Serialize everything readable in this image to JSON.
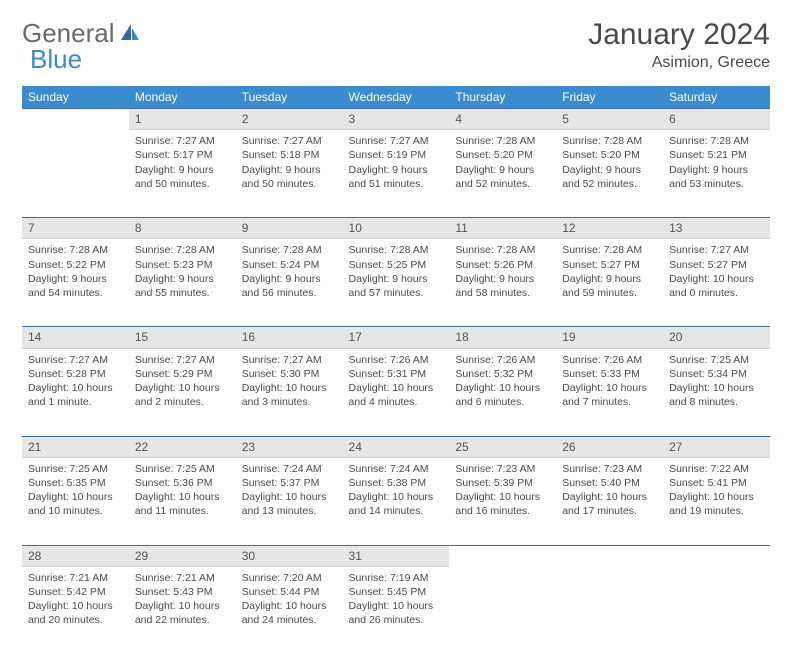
{
  "brand": {
    "part1": "General",
    "part2": "Blue"
  },
  "title": "January 2024",
  "location": "Asimion, Greece",
  "colors": {
    "header_bg": "#3b8bd0",
    "header_text": "#ffffff",
    "daynum_bg": "#e6e6e6",
    "row_border": "#3b6fa0",
    "body_text": "#4a4a4a",
    "page_bg": "#ffffff"
  },
  "weekdays": [
    "Sunday",
    "Monday",
    "Tuesday",
    "Wednesday",
    "Thursday",
    "Friday",
    "Saturday"
  ],
  "weeks": [
    {
      "nums": [
        "",
        "1",
        "2",
        "3",
        "4",
        "5",
        "6"
      ],
      "cells": [
        null,
        {
          "sunrise": "Sunrise: 7:27 AM",
          "sunset": "Sunset: 5:17 PM",
          "day1": "Daylight: 9 hours",
          "day2": "and 50 minutes."
        },
        {
          "sunrise": "Sunrise: 7:27 AM",
          "sunset": "Sunset: 5:18 PM",
          "day1": "Daylight: 9 hours",
          "day2": "and 50 minutes."
        },
        {
          "sunrise": "Sunrise: 7:27 AM",
          "sunset": "Sunset: 5:19 PM",
          "day1": "Daylight: 9 hours",
          "day2": "and 51 minutes."
        },
        {
          "sunrise": "Sunrise: 7:28 AM",
          "sunset": "Sunset: 5:20 PM",
          "day1": "Daylight: 9 hours",
          "day2": "and 52 minutes."
        },
        {
          "sunrise": "Sunrise: 7:28 AM",
          "sunset": "Sunset: 5:20 PM",
          "day1": "Daylight: 9 hours",
          "day2": "and 52 minutes."
        },
        {
          "sunrise": "Sunrise: 7:28 AM",
          "sunset": "Sunset: 5:21 PM",
          "day1": "Daylight: 9 hours",
          "day2": "and 53 minutes."
        }
      ]
    },
    {
      "nums": [
        "7",
        "8",
        "9",
        "10",
        "11",
        "12",
        "13"
      ],
      "cells": [
        {
          "sunrise": "Sunrise: 7:28 AM",
          "sunset": "Sunset: 5:22 PM",
          "day1": "Daylight: 9 hours",
          "day2": "and 54 minutes."
        },
        {
          "sunrise": "Sunrise: 7:28 AM",
          "sunset": "Sunset: 5:23 PM",
          "day1": "Daylight: 9 hours",
          "day2": "and 55 minutes."
        },
        {
          "sunrise": "Sunrise: 7:28 AM",
          "sunset": "Sunset: 5:24 PM",
          "day1": "Daylight: 9 hours",
          "day2": "and 56 minutes."
        },
        {
          "sunrise": "Sunrise: 7:28 AM",
          "sunset": "Sunset: 5:25 PM",
          "day1": "Daylight: 9 hours",
          "day2": "and 57 minutes."
        },
        {
          "sunrise": "Sunrise: 7:28 AM",
          "sunset": "Sunset: 5:26 PM",
          "day1": "Daylight: 9 hours",
          "day2": "and 58 minutes."
        },
        {
          "sunrise": "Sunrise: 7:28 AM",
          "sunset": "Sunset: 5:27 PM",
          "day1": "Daylight: 9 hours",
          "day2": "and 59 minutes."
        },
        {
          "sunrise": "Sunrise: 7:27 AM",
          "sunset": "Sunset: 5:27 PM",
          "day1": "Daylight: 10 hours",
          "day2": "and 0 minutes."
        }
      ]
    },
    {
      "nums": [
        "14",
        "15",
        "16",
        "17",
        "18",
        "19",
        "20"
      ],
      "cells": [
        {
          "sunrise": "Sunrise: 7:27 AM",
          "sunset": "Sunset: 5:28 PM",
          "day1": "Daylight: 10 hours",
          "day2": "and 1 minute."
        },
        {
          "sunrise": "Sunrise: 7:27 AM",
          "sunset": "Sunset: 5:29 PM",
          "day1": "Daylight: 10 hours",
          "day2": "and 2 minutes."
        },
        {
          "sunrise": "Sunrise: 7:27 AM",
          "sunset": "Sunset: 5:30 PM",
          "day1": "Daylight: 10 hours",
          "day2": "and 3 minutes."
        },
        {
          "sunrise": "Sunrise: 7:26 AM",
          "sunset": "Sunset: 5:31 PM",
          "day1": "Daylight: 10 hours",
          "day2": "and 4 minutes."
        },
        {
          "sunrise": "Sunrise: 7:26 AM",
          "sunset": "Sunset: 5:32 PM",
          "day1": "Daylight: 10 hours",
          "day2": "and 6 minutes."
        },
        {
          "sunrise": "Sunrise: 7:26 AM",
          "sunset": "Sunset: 5:33 PM",
          "day1": "Daylight: 10 hours",
          "day2": "and 7 minutes."
        },
        {
          "sunrise": "Sunrise: 7:25 AM",
          "sunset": "Sunset: 5:34 PM",
          "day1": "Daylight: 10 hours",
          "day2": "and 8 minutes."
        }
      ]
    },
    {
      "nums": [
        "21",
        "22",
        "23",
        "24",
        "25",
        "26",
        "27"
      ],
      "cells": [
        {
          "sunrise": "Sunrise: 7:25 AM",
          "sunset": "Sunset: 5:35 PM",
          "day1": "Daylight: 10 hours",
          "day2": "and 10 minutes."
        },
        {
          "sunrise": "Sunrise: 7:25 AM",
          "sunset": "Sunset: 5:36 PM",
          "day1": "Daylight: 10 hours",
          "day2": "and 11 minutes."
        },
        {
          "sunrise": "Sunrise: 7:24 AM",
          "sunset": "Sunset: 5:37 PM",
          "day1": "Daylight: 10 hours",
          "day2": "and 13 minutes."
        },
        {
          "sunrise": "Sunrise: 7:24 AM",
          "sunset": "Sunset: 5:38 PM",
          "day1": "Daylight: 10 hours",
          "day2": "and 14 minutes."
        },
        {
          "sunrise": "Sunrise: 7:23 AM",
          "sunset": "Sunset: 5:39 PM",
          "day1": "Daylight: 10 hours",
          "day2": "and 16 minutes."
        },
        {
          "sunrise": "Sunrise: 7:23 AM",
          "sunset": "Sunset: 5:40 PM",
          "day1": "Daylight: 10 hours",
          "day2": "and 17 minutes."
        },
        {
          "sunrise": "Sunrise: 7:22 AM",
          "sunset": "Sunset: 5:41 PM",
          "day1": "Daylight: 10 hours",
          "day2": "and 19 minutes."
        }
      ]
    },
    {
      "nums": [
        "28",
        "29",
        "30",
        "31",
        "",
        "",
        ""
      ],
      "cells": [
        {
          "sunrise": "Sunrise: 7:21 AM",
          "sunset": "Sunset: 5:42 PM",
          "day1": "Daylight: 10 hours",
          "day2": "and 20 minutes."
        },
        {
          "sunrise": "Sunrise: 7:21 AM",
          "sunset": "Sunset: 5:43 PM",
          "day1": "Daylight: 10 hours",
          "day2": "and 22 minutes."
        },
        {
          "sunrise": "Sunrise: 7:20 AM",
          "sunset": "Sunset: 5:44 PM",
          "day1": "Daylight: 10 hours",
          "day2": "and 24 minutes."
        },
        {
          "sunrise": "Sunrise: 7:19 AM",
          "sunset": "Sunset: 5:45 PM",
          "day1": "Daylight: 10 hours",
          "day2": "and 26 minutes."
        },
        null,
        null,
        null
      ]
    }
  ]
}
